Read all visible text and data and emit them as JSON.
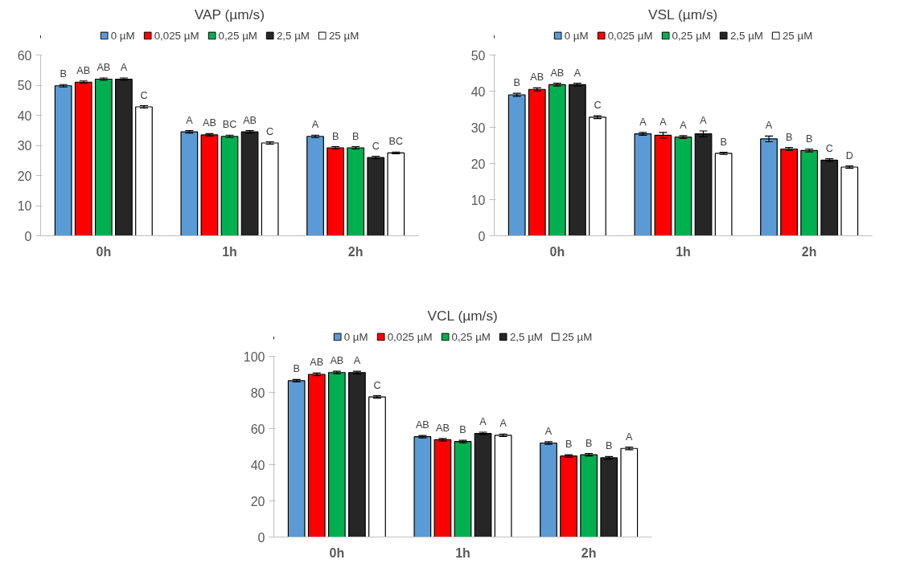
{
  "chart_data": [
    {
      "type": "bar",
      "title": "VAP (µm/s)",
      "categories": [
        "0h",
        "1h",
        "2h"
      ],
      "ylim": [
        0,
        60
      ],
      "yticks": [
        0,
        10,
        20,
        30,
        40,
        50,
        60
      ],
      "grid": false,
      "legend": "top",
      "series": [
        {
          "name": "0 µM",
          "color": "#5b9bd5",
          "values": [
            49.8,
            34.5,
            33
          ],
          "errors": [
            0.4,
            0.4,
            0.4
          ],
          "value_labels": [
            "B",
            "A",
            "A"
          ]
        },
        {
          "name": "0,025 µM",
          "color": "#ff0000",
          "values": [
            51,
            33.5,
            29.2
          ],
          "errors": [
            0.4,
            0.4,
            0.4
          ],
          "value_labels": [
            "AB",
            "AB",
            "B"
          ]
        },
        {
          "name": "0,25 µM",
          "color": "#00b050",
          "values": [
            52,
            33,
            29.2
          ],
          "errors": [
            0.4,
            0.4,
            0.4
          ],
          "value_labels": [
            "AB",
            "BC",
            "B"
          ]
        },
        {
          "name": "2,5 µM",
          "color": "#262626",
          "values": [
            52,
            34.5,
            26
          ],
          "errors": [
            0.4,
            0.4,
            0.4
          ],
          "value_labels": [
            "A",
            "AB",
            "C"
          ]
        },
        {
          "name": "25 µM",
          "color": "#ffffff",
          "values": [
            42.8,
            30.8,
            27.5
          ],
          "errors": [
            0.4,
            0.4,
            0.3
          ],
          "value_labels": [
            "C",
            "C",
            "BC"
          ]
        }
      ]
    },
    {
      "type": "bar",
      "title": "VSL (µm/s)",
      "categories": [
        "0h",
        "1h",
        "2h"
      ],
      "ylim": [
        0,
        50
      ],
      "yticks": [
        0,
        10,
        20,
        30,
        40,
        50
      ],
      "grid": false,
      "legend": "top",
      "series": [
        {
          "name": "0 µM",
          "color": "#5b9bd5",
          "values": [
            39,
            28.2,
            26.8
          ],
          "errors": [
            0.4,
            0.4,
            0.8
          ],
          "value_labels": [
            "B",
            "A",
            "A"
          ]
        },
        {
          "name": "0,025 µM",
          "color": "#ff0000",
          "values": [
            40.5,
            27.8,
            24
          ],
          "errors": [
            0.4,
            0.8,
            0.4
          ],
          "value_labels": [
            "AB",
            "A",
            "B"
          ]
        },
        {
          "name": "0,25 µM",
          "color": "#00b050",
          "values": [
            41.8,
            27.3,
            23.6
          ],
          "errors": [
            0.4,
            0.4,
            0.4
          ],
          "value_labels": [
            "AB",
            "A",
            "B"
          ]
        },
        {
          "name": "2,5 µM",
          "color": "#262626",
          "values": [
            41.8,
            28.2,
            20.9
          ],
          "errors": [
            0.4,
            0.8,
            0.4
          ],
          "value_labels": [
            "A",
            "A",
            "C"
          ]
        },
        {
          "name": "25 µM",
          "color": "#ffffff",
          "values": [
            32.8,
            22.8,
            19
          ],
          "errors": [
            0.4,
            0.3,
            0.3
          ],
          "value_labels": [
            "C",
            "B",
            "D"
          ]
        }
      ]
    },
    {
      "type": "bar",
      "title": "VCL (µm/s)",
      "categories": [
        "0h",
        "1h",
        "2h"
      ],
      "ylim": [
        0,
        100
      ],
      "yticks": [
        0,
        20,
        40,
        60,
        80,
        100
      ],
      "grid": false,
      "legend": "top",
      "series": [
        {
          "name": "0 µM",
          "color": "#5b9bd5",
          "values": [
            86.5,
            55.5,
            52
          ],
          "errors": [
            0.7,
            0.7,
            0.7
          ],
          "value_labels": [
            "B",
            "AB",
            "A"
          ]
        },
        {
          "name": "0,025 µM",
          "color": "#ff0000",
          "values": [
            90,
            53.8,
            44.8
          ],
          "errors": [
            0.7,
            0.7,
            0.7
          ],
          "value_labels": [
            "AB",
            "AB",
            "B"
          ]
        },
        {
          "name": "0,25 µM",
          "color": "#00b050",
          "values": [
            91,
            52.8,
            45.5
          ],
          "errors": [
            0.7,
            0.7,
            0.7
          ],
          "value_labels": [
            "AB",
            "B",
            "B"
          ]
        },
        {
          "name": "2,5 µM",
          "color": "#262626",
          "values": [
            91,
            57.3,
            43.8
          ],
          "errors": [
            0.7,
            0.7,
            0.7
          ],
          "value_labels": [
            "A",
            "A",
            "B"
          ]
        },
        {
          "name": "25 µM",
          "color": "#ffffff",
          "values": [
            77.5,
            56.3,
            49
          ],
          "errors": [
            0.7,
            0.7,
            0.7
          ],
          "value_labels": [
            "C",
            "A",
            "A"
          ]
        }
      ]
    }
  ]
}
